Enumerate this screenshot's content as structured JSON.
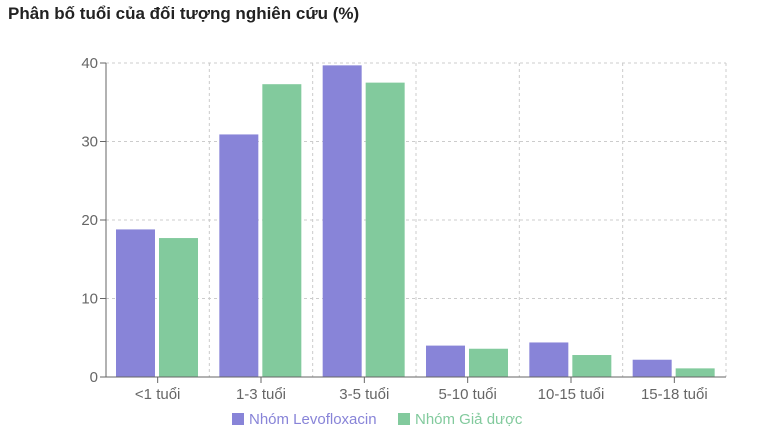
{
  "title": "Phân bố tuổi của đối tượng nghiên cứu (%)",
  "chart_data": {
    "type": "bar",
    "title": "Phân bố tuổi của đối tượng nghiên cứu (%)",
    "xlabel": "",
    "ylabel": "",
    "categories": [
      "<1 tuổi",
      "1-3 tuổi",
      "3-5 tuổi",
      "5-10 tuổi",
      "10-15 tuổi",
      "15-18 tuổi"
    ],
    "series": [
      {
        "name": "Nhóm Levofloxacin",
        "color": "#8884d8",
        "values": [
          18.8,
          30.9,
          39.7,
          4.0,
          4.4,
          2.2
        ]
      },
      {
        "name": "Nhóm Giả dược",
        "color": "#82ca9d",
        "values": [
          17.7,
          37.3,
          37.5,
          3.6,
          2.8,
          1.1
        ]
      }
    ],
    "ylim": [
      0,
      40
    ],
    "yticks": [
      0,
      10,
      20,
      30,
      40
    ],
    "grid": true,
    "legend_position": "bottom"
  }
}
